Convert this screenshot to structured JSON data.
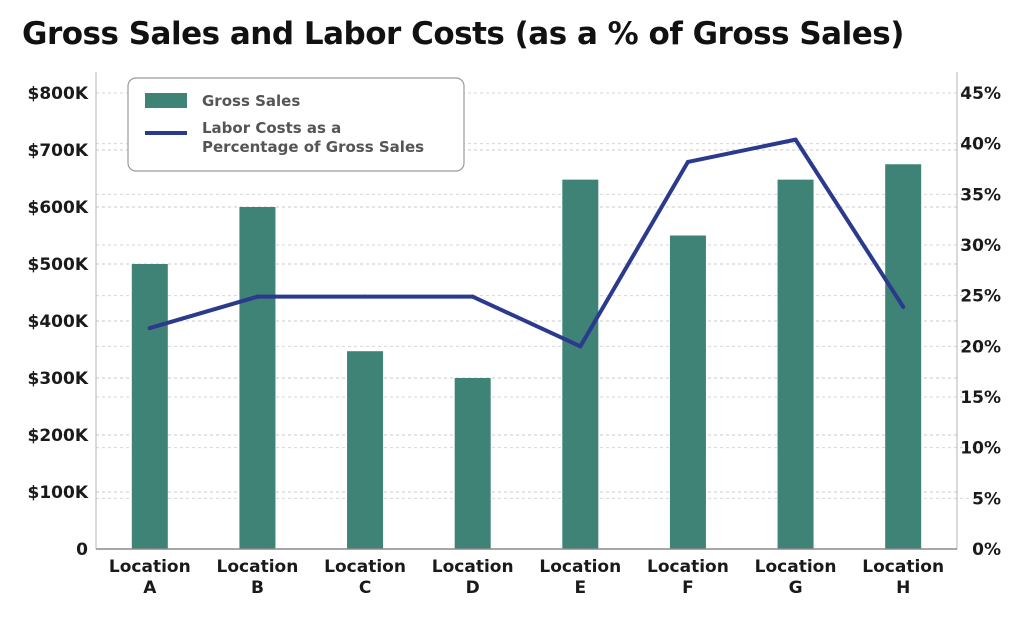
{
  "chart_data": {
    "type": "bar",
    "title": "Gross Sales and Labor Costs (as a % of Gross Sales)",
    "categories": [
      [
        "Location",
        "A"
      ],
      [
        "Location",
        "B"
      ],
      [
        "Location",
        "C"
      ],
      [
        "Location",
        "D"
      ],
      [
        "Location",
        "E"
      ],
      [
        "Location",
        "F"
      ],
      [
        "Location",
        "G"
      ],
      [
        "Location",
        "H"
      ]
    ],
    "series": [
      {
        "name": "Gross Sales",
        "kind": "bar",
        "axis": "left",
        "values": [
          500000,
          600000,
          347000,
          300000,
          648000,
          550000,
          648000,
          675000
        ],
        "color": "#3f8276"
      },
      {
        "name_lines": [
          "Labor Costs as a",
          "Percentage of Gross Sales"
        ],
        "kind": "line",
        "axis": "right",
        "values": [
          21.8,
          24.9,
          24.9,
          24.9,
          20.0,
          38.2,
          40.4,
          23.9
        ],
        "color": "#2b3a8c"
      }
    ],
    "y_left": {
      "ylim": [
        0,
        800000
      ],
      "ticks": [
        0,
        100000,
        200000,
        300000,
        400000,
        500000,
        600000,
        700000,
        800000
      ],
      "tick_labels": [
        "0",
        "$100K",
        "$200K",
        "$300K",
        "$400K",
        "$500K",
        "$600K",
        "$700K",
        "$800K"
      ]
    },
    "y_right": {
      "ylim": [
        0,
        45
      ],
      "ticks": [
        0,
        5,
        10,
        15,
        20,
        25,
        30,
        35,
        40,
        45
      ],
      "tick_labels": [
        "0%",
        "5%",
        "10%",
        "15%",
        "20%",
        "25%",
        "30%",
        "35%",
        "40%",
        "45%"
      ]
    },
    "grid": true,
    "legend_position": "top-left"
  }
}
